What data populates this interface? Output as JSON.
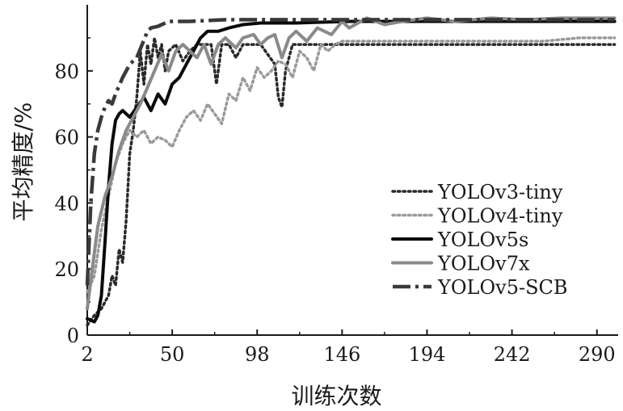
{
  "chart_data": {
    "type": "line",
    "title": "",
    "xlabel": "训练次数",
    "ylabel": "平均精度/%",
    "xlim": [
      2,
      302
    ],
    "ylim": [
      0,
      100
    ],
    "xticks": [
      2,
      50,
      98,
      146,
      194,
      242,
      290
    ],
    "yticks": [
      0,
      20,
      40,
      60,
      80
    ],
    "grid": false,
    "legend_position": "bottom-right",
    "series": [
      {
        "name": "YOLOv3-tiny",
        "style": "dotted",
        "color": "#2a2a2a",
        "points": [
          [
            2,
            3
          ],
          [
            6,
            6
          ],
          [
            10,
            8
          ],
          [
            14,
            12
          ],
          [
            16,
            18
          ],
          [
            18,
            15
          ],
          [
            20,
            26
          ],
          [
            22,
            22
          ],
          [
            24,
            35
          ],
          [
            26,
            55
          ],
          [
            28,
            62
          ],
          [
            30,
            72
          ],
          [
            32,
            86
          ],
          [
            34,
            76
          ],
          [
            36,
            88
          ],
          [
            38,
            82
          ],
          [
            40,
            90
          ],
          [
            42,
            84
          ],
          [
            44,
            88
          ],
          [
            46,
            80
          ],
          [
            48,
            86
          ],
          [
            52,
            88
          ],
          [
            56,
            83
          ],
          [
            60,
            86
          ],
          [
            64,
            88
          ],
          [
            68,
            88
          ],
          [
            72,
            88
          ],
          [
            75,
            76
          ],
          [
            78,
            88
          ],
          [
            82,
            88
          ],
          [
            86,
            84
          ],
          [
            90,
            88
          ],
          [
            100,
            88
          ],
          [
            108,
            82
          ],
          [
            110,
            72
          ],
          [
            112,
            69
          ],
          [
            114,
            80
          ],
          [
            118,
            88
          ],
          [
            125,
            88
          ],
          [
            140,
            88
          ],
          [
            160,
            88
          ],
          [
            200,
            88
          ],
          [
            250,
            88
          ],
          [
            300,
            88
          ]
        ]
      },
      {
        "name": "YOLOv4-tiny",
        "style": "dotted",
        "color": "#9a9a9a",
        "points": [
          [
            2,
            13
          ],
          [
            6,
            18
          ],
          [
            10,
            32
          ],
          [
            14,
            42
          ],
          [
            18,
            52
          ],
          [
            22,
            58
          ],
          [
            26,
            62
          ],
          [
            30,
            60
          ],
          [
            34,
            62
          ],
          [
            38,
            58
          ],
          [
            42,
            60
          ],
          [
            46,
            59
          ],
          [
            50,
            57
          ],
          [
            54,
            62
          ],
          [
            58,
            66
          ],
          [
            62,
            68
          ],
          [
            66,
            65
          ],
          [
            70,
            70
          ],
          [
            74,
            67
          ],
          [
            78,
            64
          ],
          [
            82,
            73
          ],
          [
            86,
            71
          ],
          [
            90,
            78
          ],
          [
            94,
            74
          ],
          [
            98,
            81
          ],
          [
            102,
            78
          ],
          [
            106,
            80
          ],
          [
            110,
            83
          ],
          [
            114,
            82
          ],
          [
            118,
            78
          ],
          [
            122,
            86
          ],
          [
            126,
            84
          ],
          [
            130,
            80
          ],
          [
            134,
            88
          ],
          [
            138,
            86
          ],
          [
            142,
            88
          ],
          [
            146,
            89
          ],
          [
            160,
            89
          ],
          [
            180,
            89
          ],
          [
            200,
            89
          ],
          [
            230,
            89
          ],
          [
            260,
            89
          ],
          [
            280,
            90
          ],
          [
            300,
            90
          ]
        ]
      },
      {
        "name": "YOLOv5s",
        "style": "solid",
        "color": "#0a0a0a",
        "points": [
          [
            2,
            5
          ],
          [
            6,
            4
          ],
          [
            8,
            6
          ],
          [
            10,
            12
          ],
          [
            12,
            28
          ],
          [
            14,
            45
          ],
          [
            16,
            58
          ],
          [
            18,
            65
          ],
          [
            20,
            67
          ],
          [
            22,
            68
          ],
          [
            26,
            66
          ],
          [
            30,
            69
          ],
          [
            34,
            72
          ],
          [
            38,
            68
          ],
          [
            42,
            73
          ],
          [
            46,
            70
          ],
          [
            50,
            76
          ],
          [
            54,
            78
          ],
          [
            58,
            82
          ],
          [
            62,
            86
          ],
          [
            66,
            90
          ],
          [
            70,
            92
          ],
          [
            76,
            92
          ],
          [
            82,
            93
          ],
          [
            90,
            94
          ],
          [
            100,
            94.5
          ],
          [
            120,
            94.5
          ],
          [
            150,
            95
          ],
          [
            200,
            95
          ],
          [
            250,
            95
          ],
          [
            300,
            95
          ]
        ]
      },
      {
        "name": "YOLOv7x",
        "style": "solid",
        "color": "#8a8a8a",
        "points": [
          [
            2,
            8
          ],
          [
            6,
            25
          ],
          [
            8,
            33
          ],
          [
            12,
            42
          ],
          [
            16,
            48
          ],
          [
            20,
            56
          ],
          [
            24,
            62
          ],
          [
            28,
            66
          ],
          [
            32,
            70
          ],
          [
            36,
            75
          ],
          [
            40,
            80
          ],
          [
            44,
            85
          ],
          [
            48,
            80
          ],
          [
            52,
            86
          ],
          [
            56,
            88
          ],
          [
            60,
            86
          ],
          [
            64,
            84
          ],
          [
            68,
            88
          ],
          [
            72,
            82
          ],
          [
            76,
            88
          ],
          [
            80,
            90
          ],
          [
            86,
            87
          ],
          [
            90,
            90
          ],
          [
            96,
            91
          ],
          [
            100,
            88
          ],
          [
            104,
            90
          ],
          [
            108,
            91
          ],
          [
            112,
            84
          ],
          [
            116,
            90
          ],
          [
            120,
            92
          ],
          [
            126,
            89
          ],
          [
            132,
            93
          ],
          [
            140,
            91
          ],
          [
            146,
            95
          ],
          [
            150,
            93
          ],
          [
            160,
            96
          ],
          [
            170,
            94
          ],
          [
            180,
            95
          ],
          [
            194,
            96
          ],
          [
            210,
            95
          ],
          [
            230,
            96
          ],
          [
            250,
            95.5
          ],
          [
            270,
            96
          ],
          [
            290,
            96
          ],
          [
            300,
            96
          ]
        ]
      },
      {
        "name": "YOLOv5-SCB",
        "style": "dashdot",
        "color": "#3a3a3a",
        "points": [
          [
            2,
            15
          ],
          [
            4,
            40
          ],
          [
            6,
            55
          ],
          [
            8,
            62
          ],
          [
            10,
            66
          ],
          [
            12,
            69
          ],
          [
            14,
            71
          ],
          [
            16,
            70
          ],
          [
            18,
            73
          ],
          [
            22,
            78
          ],
          [
            24,
            80
          ],
          [
            26,
            82
          ],
          [
            30,
            84
          ],
          [
            33,
            88
          ],
          [
            36,
            92
          ],
          [
            38,
            93
          ],
          [
            42,
            93.5
          ],
          [
            48,
            95
          ],
          [
            60,
            95
          ],
          [
            80,
            95.5
          ],
          [
            100,
            95.5
          ],
          [
            140,
            95.5
          ],
          [
            200,
            95.5
          ],
          [
            250,
            95.5
          ],
          [
            300,
            95.5
          ]
        ]
      }
    ]
  }
}
